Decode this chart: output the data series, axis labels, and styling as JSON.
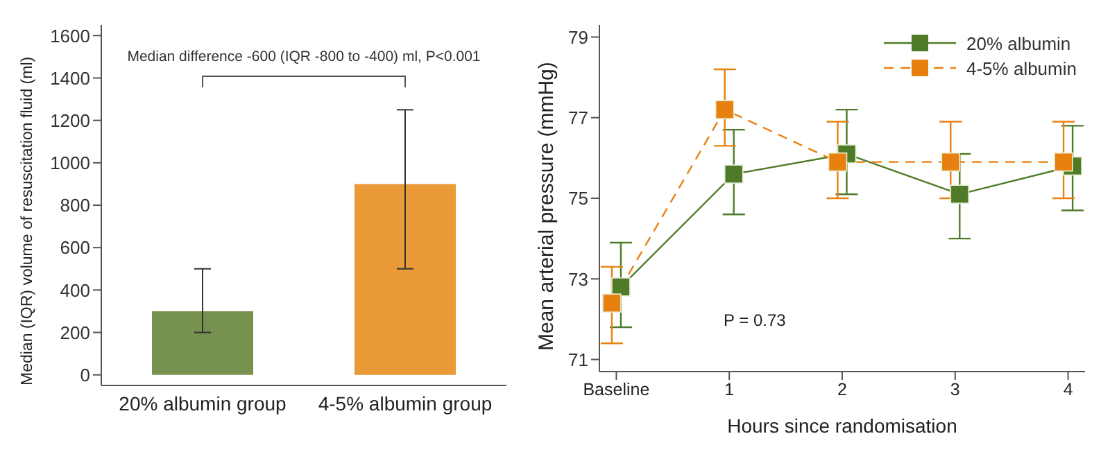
{
  "chart_data": [
    {
      "type": "bar",
      "categories": [
        "20% albumin group",
        "4-5% albumin group"
      ],
      "values": [
        300,
        900
      ],
      "colors": [
        "#77914f",
        "#ea9a36"
      ],
      "errors": [
        [
          200,
          500
        ],
        [
          500,
          1250
        ]
      ],
      "ylabel": "Median (IQR) volume of resuscitation fluid (ml)",
      "ylim": [
        -50,
        1650
      ],
      "yticks": [
        0,
        200,
        400,
        600,
        800,
        1000,
        1200,
        1400,
        1600
      ],
      "annotations": [
        "Median difference -600 (IQR -800 to -400) ml, P<0.001"
      ],
      "grid": false
    },
    {
      "type": "line",
      "xlabel": "Hours since randomisation",
      "ylabel": "Mean arterial pressure (mmHg)",
      "xlim": [
        -0.15,
        4.15
      ],
      "xticks": [
        {
          "value": 0,
          "label": "Baseline"
        },
        1,
        2,
        3,
        4
      ],
      "ylim": [
        70.7,
        79.3
      ],
      "yticks": [
        71,
        73,
        75,
        77,
        79
      ],
      "marker": "square",
      "grid": false,
      "legend": "top right",
      "annotations": [
        "P = 0.73"
      ],
      "series": [
        {
          "name": "20% albumin",
          "color": "#4f7a28",
          "line_style": "solid",
          "x": [
            0.04,
            1.04,
            2.04,
            3.04,
            4.04
          ],
          "values": [
            72.8,
            75.6,
            76.1,
            75.1,
            75.8
          ],
          "errors": [
            [
              71.8,
              73.9
            ],
            [
              74.6,
              76.7
            ],
            [
              75.1,
              77.2
            ],
            [
              74.0,
              76.1
            ],
            [
              74.7,
              76.8
            ]
          ]
        },
        {
          "name": "4-5% albumin",
          "color": "#e8800f",
          "line_style": "dashed",
          "x": [
            -0.04,
            0.96,
            1.96,
            2.96,
            3.96
          ],
          "values": [
            72.4,
            77.2,
            75.9,
            75.9,
            75.9
          ],
          "errors": [
            [
              71.4,
              73.3
            ],
            [
              76.3,
              78.2
            ],
            [
              75.0,
              76.9
            ],
            [
              75.0,
              76.9
            ],
            [
              75.0,
              76.9
            ]
          ]
        }
      ]
    }
  ]
}
